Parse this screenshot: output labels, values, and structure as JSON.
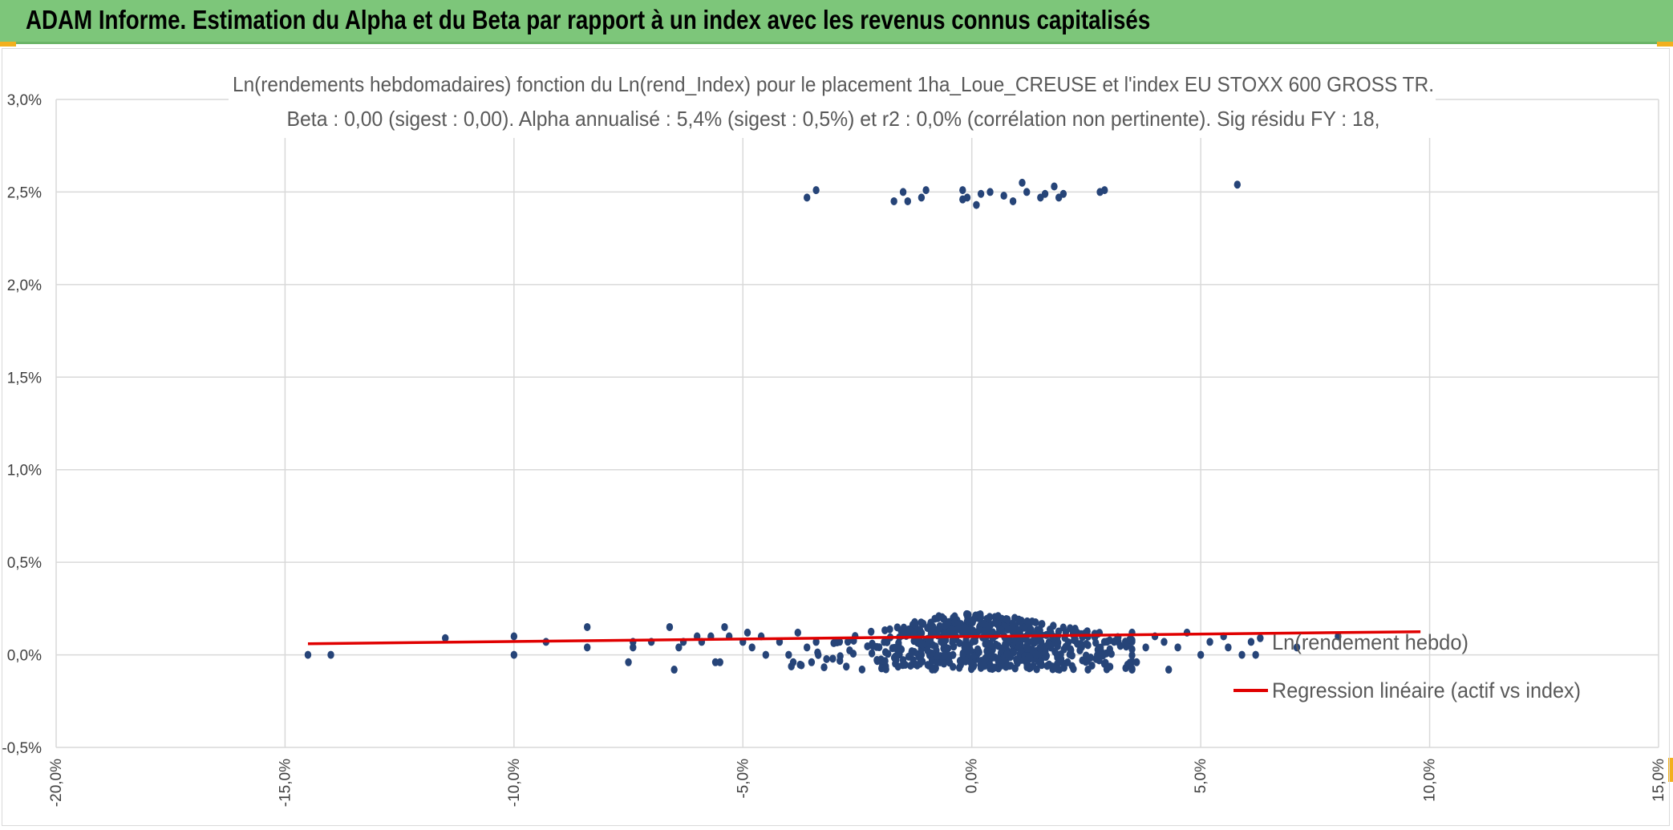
{
  "header": {
    "title": "ADAM Informe. Estimation du Alpha et du Beta par rapport à un index avec les revenus connus capitalisés"
  },
  "colors": {
    "header_bg": "#7dc67a",
    "scatter": "#264478",
    "regression": "#e00000",
    "grid": "#d9d9d9",
    "accent_corner": "#f2b01e"
  },
  "chart_data": {
    "type": "scatter",
    "title_line1": "Ln(rendements hebdomadaires) fonction du Ln(rend_Index) pour le placement 1ha_Loue_CREUSE et l'index EU STOXX 600 GROSS TR.",
    "title_line2": "Beta : 0,00 (sigest : 0,00). Alpha annualisé : 5,4% (sigest : 0,5%) et r2 : 0,0% (corrélation non pertinente). Sig résidu FY : 18,",
    "xlim": [
      -20,
      15
    ],
    "ylim": [
      -0.5,
      3.0
    ],
    "x_ticks": [
      -20,
      -15,
      -10,
      -5,
      0,
      5,
      10,
      15
    ],
    "x_tick_labels": [
      "-20,0%",
      "-15,0%",
      "-10,0%",
      "-5,0%",
      "0,0%",
      "5,0%",
      "10,0%",
      "15,0%"
    ],
    "y_ticks": [
      -0.5,
      0,
      0.5,
      1.0,
      1.5,
      2.0,
      2.5,
      3.0
    ],
    "y_tick_labels": [
      "-0,5%",
      "0,0%",
      "0,5%",
      "1,0%",
      "1,5%",
      "2,0%",
      "2,5%",
      "3,0%"
    ],
    "grid": true,
    "legend_position": "right",
    "series": [
      {
        "name": "Ln(rendement hebdo)",
        "kind": "scatter",
        "points": [
          [
            -14.5,
            0.0
          ],
          [
            -14.0,
            0.0
          ],
          [
            -11.5,
            0.09
          ],
          [
            -10.0,
            0.1
          ],
          [
            -10.0,
            0.0
          ],
          [
            -9.3,
            0.07
          ],
          [
            -8.4,
            0.15
          ],
          [
            -8.4,
            0.04
          ],
          [
            -7.5,
            -0.04
          ],
          [
            -7.4,
            0.07
          ],
          [
            -7.4,
            0.04
          ],
          [
            -7.0,
            0.07
          ],
          [
            -6.6,
            0.15
          ],
          [
            -6.5,
            -0.08
          ],
          [
            -6.4,
            0.04
          ],
          [
            -6.3,
            0.07
          ],
          [
            -6.0,
            0.1
          ],
          [
            -5.9,
            0.07
          ],
          [
            -5.7,
            0.1
          ],
          [
            -5.6,
            -0.04
          ],
          [
            -5.5,
            -0.04
          ],
          [
            -5.4,
            0.15
          ],
          [
            -5.3,
            0.1
          ],
          [
            -5.0,
            0.07
          ],
          [
            -4.9,
            0.12
          ],
          [
            -4.8,
            0.04
          ],
          [
            -4.6,
            0.1
          ],
          [
            -4.5,
            0.0
          ],
          [
            -4.2,
            0.07
          ],
          [
            -4.0,
            0.0
          ],
          [
            -3.9,
            -0.04
          ],
          [
            -3.8,
            0.12
          ],
          [
            -3.6,
            0.04
          ],
          [
            -3.5,
            -0.04
          ],
          [
            -3.4,
            0.07
          ],
          [
            -3.6,
            2.47
          ],
          [
            -3.4,
            2.51
          ],
          [
            -1.7,
            2.45
          ],
          [
            -1.5,
            2.5
          ],
          [
            -1.4,
            2.45
          ],
          [
            -1.1,
            2.47
          ],
          [
            -1.0,
            2.51
          ],
          [
            -0.2,
            2.51
          ],
          [
            -0.2,
            2.46
          ],
          [
            -0.1,
            2.47
          ],
          [
            0.1,
            2.43
          ],
          [
            0.2,
            2.49
          ],
          [
            0.4,
            2.5
          ],
          [
            0.7,
            2.48
          ],
          [
            0.9,
            2.45
          ],
          [
            1.1,
            2.55
          ],
          [
            1.2,
            2.5
          ],
          [
            1.5,
            2.47
          ],
          [
            1.6,
            2.49
          ],
          [
            1.8,
            2.53
          ],
          [
            1.9,
            2.47
          ],
          [
            2.0,
            2.49
          ],
          [
            2.8,
            2.5
          ],
          [
            2.9,
            2.51
          ],
          [
            5.8,
            2.54
          ],
          [
            3.2,
            0.07
          ],
          [
            3.5,
            0.12
          ],
          [
            3.6,
            -0.04
          ],
          [
            3.8,
            0.04
          ],
          [
            4.0,
            0.1
          ],
          [
            4.2,
            0.07
          ],
          [
            4.3,
            -0.08
          ],
          [
            4.5,
            0.04
          ],
          [
            4.7,
            0.12
          ],
          [
            5.0,
            0.0
          ],
          [
            5.2,
            0.07
          ],
          [
            5.5,
            0.1
          ],
          [
            5.6,
            0.04
          ],
          [
            5.9,
            0.0
          ],
          [
            6.1,
            0.07
          ],
          [
            6.2,
            0.0
          ],
          [
            6.3,
            0.09
          ],
          [
            7.1,
            0.04
          ],
          [
            8.0,
            0.1
          ]
        ],
        "dense_cluster": {
          "x_range": [
            -4.0,
            3.5
          ],
          "y_range": [
            -0.08,
            0.22
          ],
          "count": 620,
          "seed": 17
        }
      },
      {
        "name": "Regression linéaire (actif vs index)",
        "kind": "line",
        "points": [
          [
            -14.5,
            0.06
          ],
          [
            9.8,
            0.125
          ]
        ]
      }
    ]
  }
}
